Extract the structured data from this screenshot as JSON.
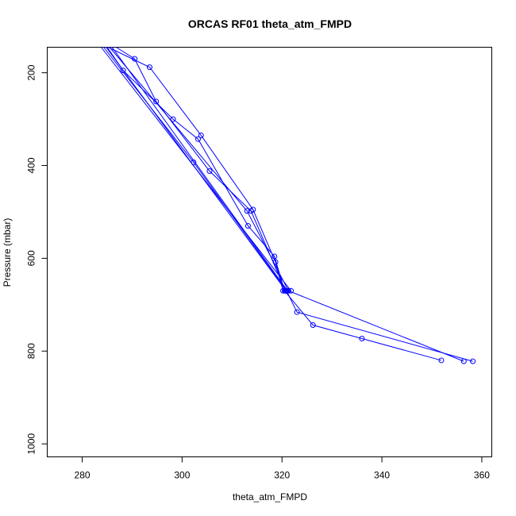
{
  "chart_data": {
    "type": "line",
    "title": "ORCAS RF01 theta_atm_FMPD",
    "xlabel": "theta_atm_FMPD",
    "ylabel": "Pressure (mbar)",
    "xlim": [
      273,
      362
    ],
    "ylim": [
      1028,
      145
    ],
    "y_reversed": true,
    "grid": false,
    "x_ticks": [
      280,
      300,
      320,
      340,
      360
    ],
    "y_ticks": [
      200,
      400,
      600,
      800,
      1000
    ],
    "series_color": "#0000ff",
    "series": [
      {
        "points": [
          [
            285.2,
            145
          ],
          [
            293.5,
            188
          ],
          [
            303.8,
            335
          ],
          [
            314.2,
            495
          ],
          [
            318.7,
            608
          ],
          [
            320.2,
            670
          ]
        ]
      },
      {
        "points": [
          [
            286.8,
            145
          ],
          [
            290.5,
            170
          ],
          [
            294.8,
            262
          ],
          [
            305.5,
            412
          ],
          [
            313.8,
            498
          ],
          [
            320.7,
            670
          ]
        ]
      },
      {
        "points": [
          [
            285.0,
            145
          ],
          [
            288.2,
            195
          ],
          [
            298.2,
            300
          ],
          [
            303.2,
            343
          ],
          [
            313.2,
            530
          ],
          [
            318.5,
            596
          ],
          [
            320.5,
            670
          ],
          [
            326.2,
            744
          ],
          [
            336.0,
            773
          ],
          [
            351.9,
            820
          ]
        ]
      },
      {
        "points": [
          [
            284.3,
            145
          ],
          [
            302.3,
            393
          ],
          [
            320.9,
            670
          ],
          [
            323.0,
            716
          ],
          [
            358.2,
            822
          ]
        ]
      },
      {
        "points": [
          [
            285.5,
            145
          ],
          [
            313.0,
            498
          ],
          [
            321.3,
            670
          ],
          [
            356.4,
            822
          ]
        ]
      },
      {
        "points": [
          [
            283.8,
            145
          ],
          [
            321.8,
            670
          ]
        ]
      },
      {
        "points": [
          [
            284.8,
            145
          ],
          [
            320.8,
            670
          ]
        ]
      },
      {
        "points": [
          [
            286.0,
            145
          ],
          [
            321.1,
            670
          ]
        ]
      }
    ]
  }
}
